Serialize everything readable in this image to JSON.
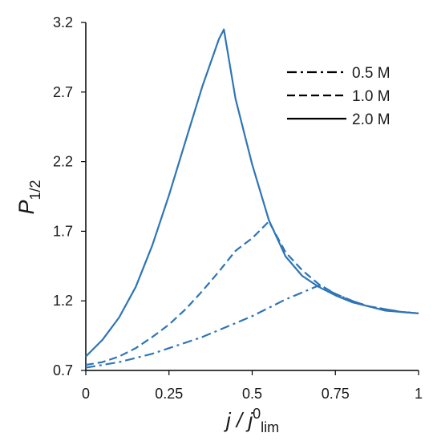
{
  "chart_data": {
    "type": "line",
    "title": "",
    "xlabel": {
      "main": "j / j",
      "sup": "0",
      "sub": "lim"
    },
    "ylabel": {
      "main": "P",
      "sub": "1/2"
    },
    "xlim": [
      0,
      1
    ],
    "ylim": [
      0.7,
      3.2
    ],
    "xticks": [
      "0",
      "0.25",
      "0.5",
      "0.75",
      "1"
    ],
    "yticks": [
      "0.7",
      "1.2",
      "1.7",
      "2.2",
      "2.7",
      "3.2"
    ],
    "grid": false,
    "legend_position": "top-right",
    "line_color": "#2e75b6",
    "legend_color": "#000000",
    "series": [
      {
        "name": "0.5 M",
        "style": "dash-dot",
        "x": [
          0.0,
          0.05,
          0.1,
          0.15,
          0.2,
          0.25,
          0.3,
          0.35,
          0.4,
          0.45,
          0.5,
          0.55,
          0.6,
          0.65,
          0.7,
          0.75,
          0.8,
          0.85,
          0.9,
          0.95,
          1.0
        ],
        "y": [
          0.72,
          0.74,
          0.76,
          0.79,
          0.82,
          0.86,
          0.9,
          0.94,
          0.99,
          1.04,
          1.09,
          1.15,
          1.21,
          1.26,
          1.31,
          1.25,
          1.2,
          1.16,
          1.14,
          1.12,
          1.11
        ]
      },
      {
        "name": "1.0 M",
        "style": "dashed",
        "x": [
          0.0,
          0.05,
          0.1,
          0.15,
          0.2,
          0.25,
          0.3,
          0.35,
          0.4,
          0.45,
          0.5,
          0.55,
          0.6,
          0.65,
          0.7,
          0.75,
          0.8,
          0.85,
          0.9,
          0.95,
          1.0
        ],
        "y": [
          0.74,
          0.76,
          0.8,
          0.86,
          0.94,
          1.03,
          1.14,
          1.27,
          1.41,
          1.56,
          1.65,
          1.77,
          1.55,
          1.42,
          1.32,
          1.25,
          1.2,
          1.16,
          1.14,
          1.12,
          1.11
        ]
      },
      {
        "name": "2.0 M",
        "style": "solid",
        "x": [
          0.0,
          0.05,
          0.1,
          0.15,
          0.2,
          0.25,
          0.3,
          0.35,
          0.4,
          0.415,
          0.45,
          0.5,
          0.55,
          0.6,
          0.65,
          0.7,
          0.75,
          0.8,
          0.85,
          0.9,
          0.95,
          1.0
        ],
        "y": [
          0.8,
          0.92,
          1.08,
          1.3,
          1.6,
          1.96,
          2.35,
          2.74,
          3.08,
          3.15,
          2.65,
          2.18,
          1.78,
          1.52,
          1.38,
          1.3,
          1.24,
          1.19,
          1.16,
          1.13,
          1.12,
          1.11
        ]
      }
    ]
  }
}
